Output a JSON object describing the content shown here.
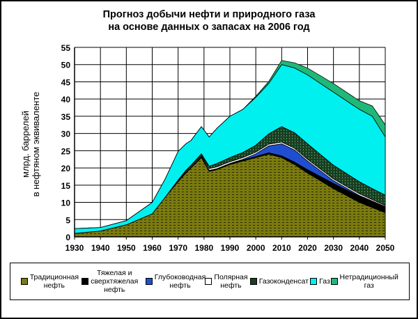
{
  "chart_data": {
    "type": "area",
    "stacked": true,
    "title": "Прогноз добычи нефти и природного газа\nна основе данных о запасах на 2006 год",
    "title_lines": [
      "Прогноз добычи нефти и природного газа",
      "на основе данных о запасах на 2006 год"
    ],
    "ylabel_lines": [
      "млрд. баррелей",
      "в нефтяном эквиваленте"
    ],
    "xlabel": "",
    "xlim": [
      1930,
      2050
    ],
    "ylim": [
      0,
      55
    ],
    "xticks": [
      "1930",
      "1940",
      "1950",
      "1960",
      "1970",
      "1980",
      "1990",
      "2000",
      "2010",
      "2020",
      "2030",
      "2040",
      "2050"
    ],
    "yticks": [
      "0",
      "5",
      "10",
      "15",
      "20",
      "25",
      "30",
      "35",
      "40",
      "45",
      "50",
      "55"
    ],
    "grid": true,
    "legend_position": "bottom",
    "x": [
      1930,
      1940,
      1950,
      1960,
      1965,
      1970,
      1973,
      1975,
      1979,
      1982,
      1985,
      1990,
      1995,
      2000,
      2005,
      2010,
      2015,
      2020,
      2030,
      2040,
      2045,
      2050
    ],
    "series": [
      {
        "name": "Традиционная нефть",
        "legend_lines": [
          "Традиционная",
          "нефть"
        ],
        "color": "#7a7a10",
        "pattern": "dots",
        "values": [
          1,
          1.7,
          3.5,
          6.7,
          11.5,
          16,
          18.5,
          20,
          23,
          19,
          19.5,
          21,
          22,
          23,
          24,
          23,
          21,
          18.5,
          14,
          10,
          8.5,
          7
        ]
      },
      {
        "name": "Тяжелая и сверхтяжелая нефть",
        "legend_lines": [
          "Тяжелая и",
          "сверхтяжелая",
          "нефть"
        ],
        "color": "#000000",
        "values": [
          0,
          0,
          0,
          0,
          0,
          0.1,
          0.2,
          0.2,
          0.3,
          0.3,
          0.3,
          0.3,
          0.3,
          0.3,
          0.4,
          0.5,
          0.7,
          1,
          1.5,
          1.8,
          1.8,
          1.8
        ]
      },
      {
        "name": "Глубоководная нефть",
        "legend_lines": [
          "Глубоководная",
          "нефть"
        ],
        "color": "#1f4fd0",
        "values": [
          0,
          0,
          0,
          0,
          0,
          0,
          0,
          0,
          0,
          0,
          0,
          0,
          0.2,
          0.8,
          2,
          3.5,
          3.5,
          2.5,
          0.8,
          0.2,
          0.1,
          0
        ]
      },
      {
        "name": "Полярная нефть",
        "legend_lines": [
          "Полярная",
          "нефть"
        ],
        "color": "#ffffff",
        "values": [
          0,
          0,
          0,
          0,
          0,
          0.2,
          0.3,
          0.3,
          0.3,
          0.5,
          0.5,
          0.5,
          0.5,
          0.5,
          0.5,
          0.5,
          0.5,
          0.5,
          0.5,
          0.5,
          0.4,
          0.3
        ]
      },
      {
        "name": "Газоконденсат",
        "legend_lines": [
          "Газоконденсат"
        ],
        "color": "#1b3d22",
        "pattern": "stripes",
        "values": [
          0,
          0,
          0,
          0,
          0,
          0.2,
          0.3,
          0.3,
          0.5,
          0.7,
          1,
          1.2,
          1.5,
          2,
          3,
          4.5,
          4.5,
          4.5,
          4,
          3.5,
          3.2,
          3
        ]
      },
      {
        "name": "Газ",
        "legend_lines": [
          "Газ"
        ],
        "color": "#00f0f0",
        "values": [
          1.4,
          1.0,
          1.2,
          3.3,
          5.3,
          8.3,
          7.7,
          7.2,
          7.9,
          8.5,
          10.2,
          12,
          12.5,
          13.9,
          14.6,
          18,
          18.8,
          20,
          21.2,
          21,
          21,
          16.9
        ]
      },
      {
        "name": "Нетрадиционный газ",
        "legend_lines": [
          "Нетрадиционный",
          "газ"
        ],
        "color": "#20b878",
        "values": [
          0,
          0,
          0,
          0,
          0,
          0,
          0,
          0,
          0,
          0,
          0,
          0,
          0,
          0.3,
          0.6,
          1.2,
          1.5,
          2,
          2.5,
          2.5,
          3,
          3.5
        ]
      }
    ]
  }
}
